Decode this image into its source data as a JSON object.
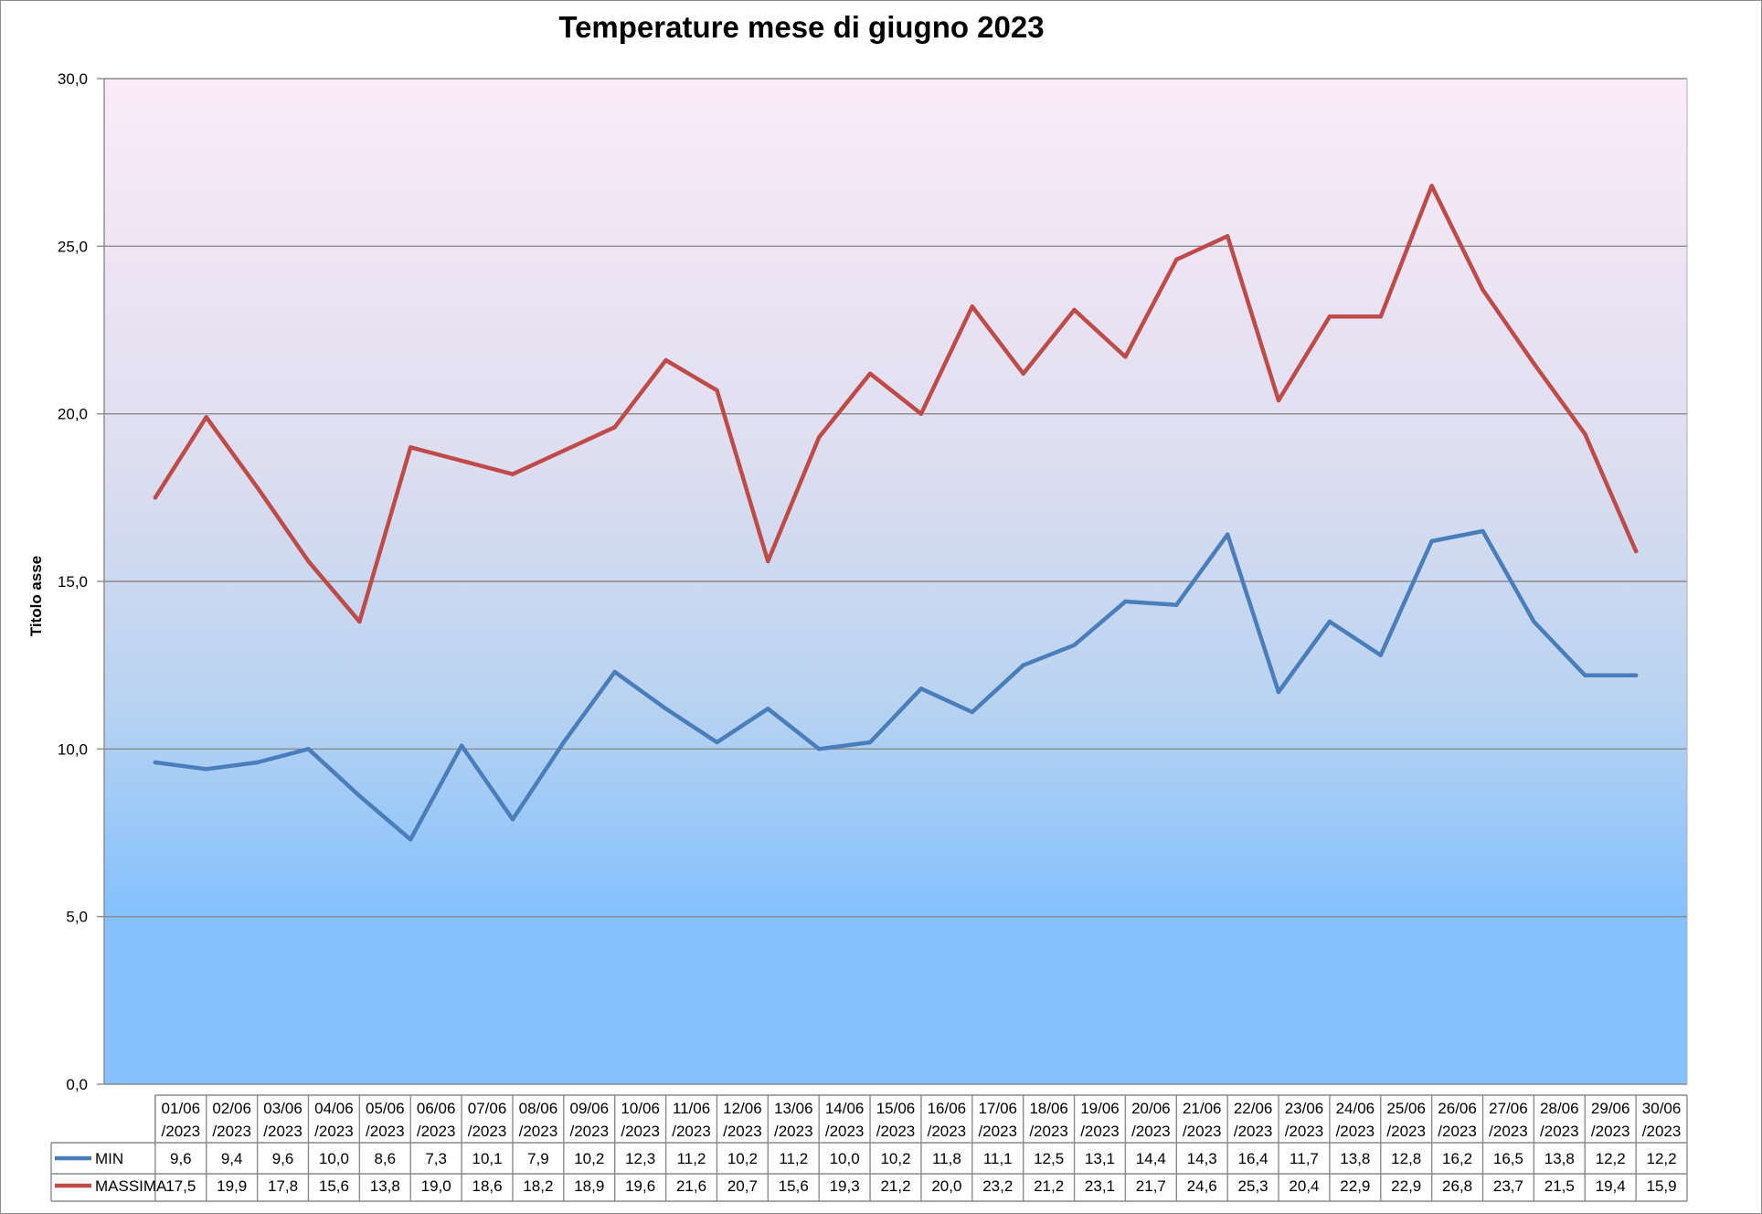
{
  "chart_data": {
    "type": "line",
    "title": "Temperature mese di giugno 2023",
    "xlabel": "",
    "ylabel": "Titolo asse",
    "ylim": [
      0,
      30
    ],
    "yticks": [
      "0,0",
      "5,0",
      "10,0",
      "15,0",
      "20,0",
      "25,0",
      "30,0"
    ],
    "ytick_values": [
      0,
      5,
      10,
      15,
      20,
      25,
      30
    ],
    "grid": true,
    "legend": "data-table-left",
    "categories": [
      [
        "01/06",
        "/2023"
      ],
      [
        "02/06",
        "/2023"
      ],
      [
        "03/06",
        "/2023"
      ],
      [
        "04/06",
        "/2023"
      ],
      [
        "05/06",
        "/2023"
      ],
      [
        "06/06",
        "/2023"
      ],
      [
        "07/06",
        "/2023"
      ],
      [
        "08/06",
        "/2023"
      ],
      [
        "09/06",
        "/2023"
      ],
      [
        "10/06",
        "/2023"
      ],
      [
        "11/06",
        "/2023"
      ],
      [
        "12/06",
        "/2023"
      ],
      [
        "13/06",
        "/2023"
      ],
      [
        "14/06",
        "/2023"
      ],
      [
        "15/06",
        "/2023"
      ],
      [
        "16/06",
        "/2023"
      ],
      [
        "17/06",
        "/2023"
      ],
      [
        "18/06",
        "/2023"
      ],
      [
        "19/06",
        "/2023"
      ],
      [
        "20/06",
        "/2023"
      ],
      [
        "21/06",
        "/2023"
      ],
      [
        "22/06",
        "/2023"
      ],
      [
        "23/06",
        "/2023"
      ],
      [
        "24/06",
        "/2023"
      ],
      [
        "25/06",
        "/2023"
      ],
      [
        "26/06",
        "/2023"
      ],
      [
        "27/06",
        "/2023"
      ],
      [
        "28/06",
        "/2023"
      ],
      [
        "29/06",
        "/2023"
      ],
      [
        "30/06",
        "/2023"
      ]
    ],
    "series": [
      {
        "name": "MIN",
        "color": "#4a7ebb",
        "values": [
          9.6,
          9.4,
          9.6,
          10.0,
          8.6,
          7.3,
          10.1,
          7.9,
          10.2,
          12.3,
          11.2,
          10.2,
          11.2,
          10.0,
          10.2,
          11.8,
          11.1,
          12.5,
          13.1,
          14.4,
          14.3,
          16.4,
          11.7,
          13.8,
          12.8,
          16.2,
          16.5,
          13.8,
          12.2,
          12.2
        ],
        "labels": [
          "9,6",
          "9,4",
          "9,6",
          "10,0",
          "8,6",
          "7,3",
          "10,1",
          "7,9",
          "10,2",
          "12,3",
          "11,2",
          "10,2",
          "11,2",
          "10,0",
          "10,2",
          "11,8",
          "11,1",
          "12,5",
          "13,1",
          "14,4",
          "14,3",
          "16,4",
          "11,7",
          "13,8",
          "12,8",
          "16,2",
          "16,5",
          "13,8",
          "12,2",
          "12,2"
        ]
      },
      {
        "name": "MASSIMA",
        "color": "#be4b48",
        "values": [
          17.5,
          19.9,
          17.8,
          15.6,
          13.8,
          19.0,
          18.6,
          18.2,
          18.9,
          19.6,
          21.6,
          20.7,
          15.6,
          19.3,
          21.2,
          20.0,
          23.2,
          21.2,
          23.1,
          21.7,
          24.6,
          25.3,
          20.4,
          22.9,
          22.9,
          26.8,
          23.7,
          21.5,
          19.4,
          15.9
        ],
        "labels": [
          "17,5",
          "19,9",
          "17,8",
          "15,6",
          "13,8",
          "19,0",
          "18,6",
          "18,2",
          "18,9",
          "19,6",
          "21,6",
          "20,7",
          "15,6",
          "19,3",
          "21,2",
          "20,0",
          "23,2",
          "21,2",
          "23,1",
          "21,7",
          "24,6",
          "25,3",
          "20,4",
          "22,9",
          "22,9",
          "26,8",
          "23,7",
          "21,5",
          "19,4",
          "15,9"
        ]
      }
    ]
  }
}
